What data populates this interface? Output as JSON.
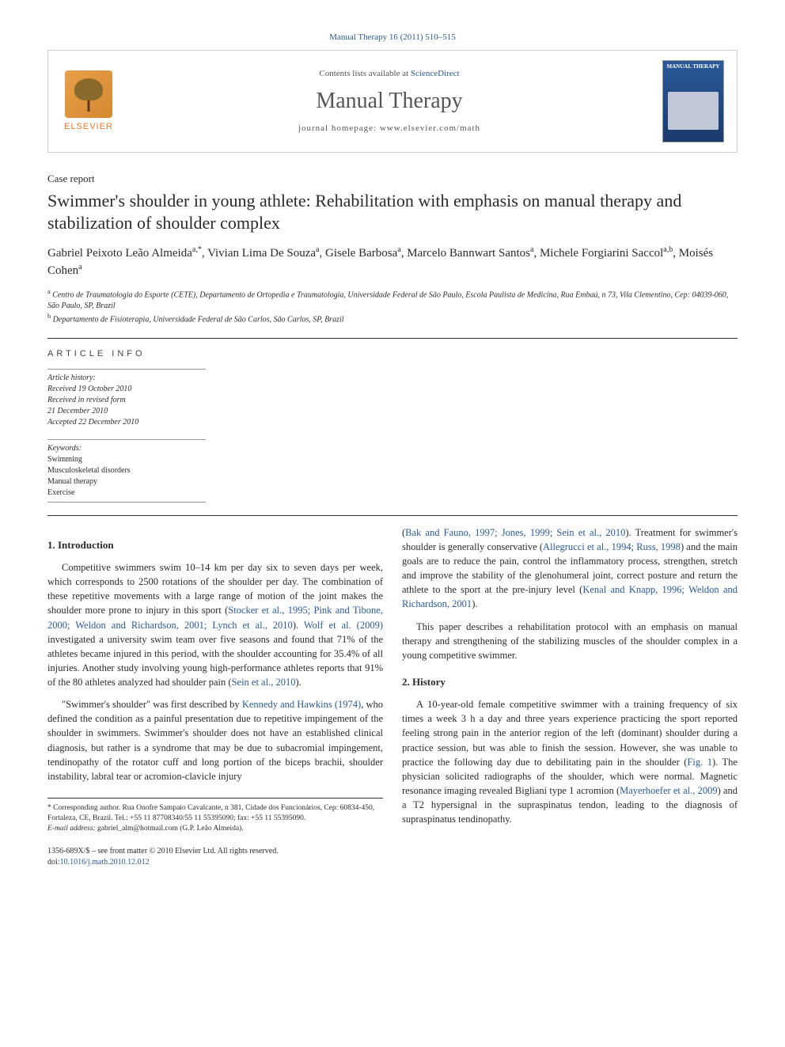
{
  "citation": "Manual Therapy 16 (2011) 510–515",
  "header": {
    "contents_prefix": "Contents lists available at ",
    "contents_link": "ScienceDirect",
    "journal_name": "Manual Therapy",
    "homepage_prefix": "journal homepage: ",
    "homepage_url": "www.elsevier.com/math",
    "publisher": "ELSEVIER",
    "cover_title": "MANUAL THERAPY"
  },
  "article": {
    "type": "Case report",
    "title": "Swimmer's shoulder in young athlete: Rehabilitation with emphasis on manual therapy and stabilization of shoulder complex",
    "authors": [
      {
        "name": "Gabriel Peixoto Leão Almeida",
        "marks": "a,*"
      },
      {
        "name": "Vivian Lima De Souza",
        "marks": "a"
      },
      {
        "name": "Gisele Barbosa",
        "marks": "a"
      },
      {
        "name": "Marcelo Bannwart Santos",
        "marks": "a"
      },
      {
        "name": "Michele Forgiarini Saccol",
        "marks": "a,b"
      },
      {
        "name": "Moisés Cohen",
        "marks": "a"
      }
    ],
    "affiliations": [
      {
        "marker": "a",
        "text": "Centro de Traumatologia do Esporte (CETE), Departamento de Ortopedia e Traumatologia, Universidade Federal de São Paulo, Escola Paulista de Medicina, Rua Embaú, n 73, Vila Clementino, Cep: 04039-060, São Paulo, SP, Brazil"
      },
      {
        "marker": "b",
        "text": "Departamento de Fisioterapia, Universidade Federal de São Carlos, São Carlos, SP, Brazil"
      }
    ]
  },
  "info": {
    "heading": "ARTICLE INFO",
    "history_label": "Article history:",
    "received": "Received 19 October 2010",
    "revised": "Received in revised form",
    "revised_date": "21 December 2010",
    "accepted": "Accepted 22 December 2010",
    "kw_label": "Keywords:",
    "keywords": [
      "Swimming",
      "Musculoskeletal disorders",
      "Manual therapy",
      "Exercise"
    ]
  },
  "body": {
    "sec1_heading": "1. Introduction",
    "p1_a": "Competitive swimmers swim 10–14 km per day six to seven days per week, which corresponds to 2500 rotations of the shoulder per day. The combination of these repetitive movements with a large range of motion of the joint makes the shoulder more prone to injury in this sport (",
    "p1_ref1": "Stocker et al., 1995; Pink and Tibone, 2000; Weldon and Richardson, 2001; Lynch et al., 2010",
    "p1_b": "). ",
    "p1_ref2": "Wolf et al. (2009)",
    "p1_c": " investigated a university swim team over five seasons and found that 71% of the athletes became injured in this period, with the shoulder accounting for 35.4% of all injuries. Another study involving young high-performance athletes reports that 91% of the 80 athletes analyzed had shoulder pain (",
    "p1_ref3": "Sein et al., 2010",
    "p1_d": ").",
    "p2_a": "\"Swimmer's shoulder\" was first described by ",
    "p2_ref1": "Kennedy and Hawkins (1974)",
    "p2_b": ", who defined the condition as a painful presentation due to repetitive impingement of the shoulder in swimmers. Swimmer's shoulder does not have an established clinical diagnosis, but rather is a syndrome that may be due to subacromial impingement, tendinopathy of the rotator cuff and long portion of the biceps brachii, shoulder instability, labral tear or acromion-clavicle injury",
    "p3_a": "(",
    "p3_ref1": "Bak and Fauno, 1997; Jones, 1999; Sein et al., 2010",
    "p3_b": "). Treatment for swimmer's shoulder is generally conservative (",
    "p3_ref2": "Allegrucci et al., 1994; Russ, 1998",
    "p3_c": ") and the main goals are to reduce the pain, control the inflammatory process, strengthen, stretch and improve the stability of the glenohumeral joint, correct posture and return the athlete to the sport at the pre-injury level (",
    "p3_ref3": "Kenal and Knapp, 1996; Weldon and Richardson, 2001",
    "p3_d": ").",
    "p4": "This paper describes a rehabilitation protocol with an emphasis on manual therapy and strengthening of the stabilizing muscles of the shoulder complex in a young competitive swimmer.",
    "sec2_heading": "2. History",
    "p5_a": "A 10-year-old female competitive swimmer with a training frequency of six times a week 3 h a day and three years experience practicing the sport reported feeling strong pain in the anterior region of the left (dominant) shoulder during a practice session, but was able to finish the session. However, she was unable to practice the following day due to debilitating pain in the shoulder (",
    "p5_ref1": "Fig. 1",
    "p5_b": "). The physician solicited radiographs of the shoulder, which were normal. Magnetic resonance imaging revealed Bigliani type 1 acromion (",
    "p5_ref2": "Mayerhoefer et al., 2009",
    "p5_c": ") and a T2 hypersignal in the supraspinatus tendon, leading to the diagnosis of supraspinatus tendinopathy."
  },
  "footnotes": {
    "corr_label": "* Corresponding author. ",
    "corr_text": "Rua Onofre Sampaio Cavalcante, n 381, Cidade dos Funcionários, Cep: 60834-450, Fortaleza, CE, Brazil. Tel.: +55 11 87708340/55 11 55395090; fax: +55 11 55395090.",
    "email_label": "E-mail address: ",
    "email": "gabriel_alm@hotmail.com",
    "email_attrib": " (G.P. Leão Almeida)."
  },
  "copyright": {
    "line1": "1356-689X/$ – see front matter © 2010 Elsevier Ltd. All rights reserved.",
    "doi_prefix": "doi:",
    "doi": "10.1016/j.math.2010.12.012"
  },
  "colors": {
    "link": "#2a5a9a",
    "pub_orange": "#e8792a",
    "cover_blue": "#2a5a9a"
  }
}
